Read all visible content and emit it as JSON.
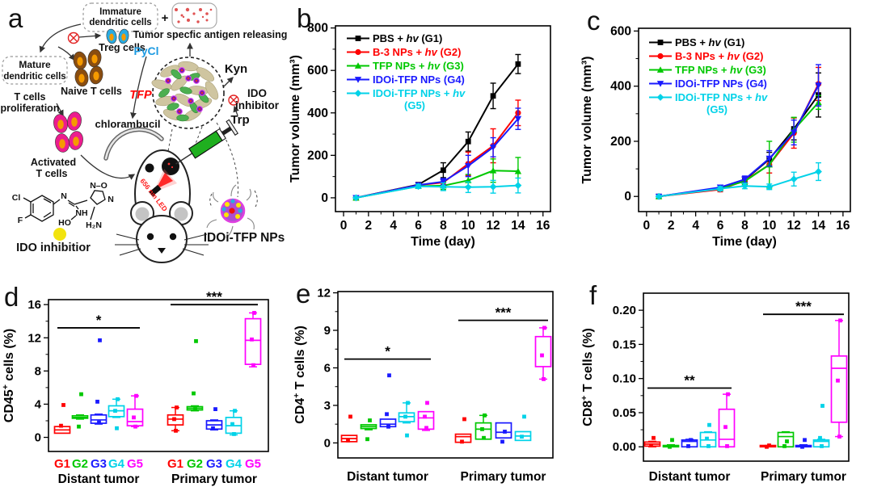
{
  "figure": {
    "panel_letters": [
      "a",
      "b",
      "c",
      "d",
      "e",
      "f"
    ]
  },
  "diagram": {
    "labels": {
      "immature_dc_line1": "Immature",
      "immature_dc_line2": "dendritic cells",
      "plus_sign": "+",
      "antigen_release": "Tumor specfic antigen releasing",
      "treg": "Treg cells",
      "mature_dc_line1": "Mature",
      "mature_dc_line2": "dendritic cells",
      "naive_t": "Naive T cells",
      "proliferation_line1": "T cells",
      "proliferation_line2": "proliferation",
      "activated_line1": "Activated",
      "activated_line2": "T cells",
      "pycl": "PyCl",
      "tfp": "TFP",
      "chlorambucil": "chlorambucil",
      "kyn": "Kyn",
      "ido_right_line1": "IDO",
      "ido_right_line2": "inhibitor",
      "trp": "Trp",
      "led": "656 nm LED",
      "np_label": "IDOi-TFP NPs",
      "ido_bottom": "IDO inhibitior",
      "atom_cl": "Cl",
      "atom_f": "F",
      "atom_n": "N",
      "atom_no": "N–O",
      "atom_n2": "N",
      "atom_nh": "NH",
      "atom_ho": "HO",
      "atom_h2n": "H₂N"
    },
    "colors": {
      "pycl": "#1e9be2",
      "tfp": "#ff0000",
      "led": "#ff1a1a",
      "treg_cell": "#29abe2",
      "naive_cell": "#8a4d10",
      "activated_cell": "#ec1c8f",
      "nucleus": "#f59a00",
      "inhibitor_dot": "#f2e30e"
    }
  },
  "chart_data": [
    {
      "id": "b",
      "type": "line",
      "xlabel": "Time (day)",
      "ylabel": "Tumor volume (mm³)",
      "xlim": [
        -0.65,
        16.6
      ],
      "ylim": [
        -65,
        810
      ],
      "xticks": [
        0,
        2,
        4,
        6,
        8,
        10,
        12,
        14,
        16
      ],
      "xminor": [
        1,
        3,
        5,
        7,
        9,
        11,
        13,
        15
      ],
      "yticks": [
        0,
        200,
        400,
        600,
        800
      ],
      "yminor": [
        100,
        300,
        500,
        700
      ],
      "x": [
        1,
        6,
        8,
        10,
        12,
        14
      ],
      "series": [
        {
          "name_pre": "PBS + ",
          "name_hv": "hv",
          "name_post": " (G1)",
          "color": "#000000",
          "marker": "square",
          "values": [
            0,
            62,
            130,
            265,
            480,
            630
          ],
          "err": [
            4,
            10,
            35,
            45,
            60,
            45
          ]
        },
        {
          "name_pre": "B-3 NPs + ",
          "name_hv": "hv",
          "name_post": " (G2)",
          "color": "#ff0000",
          "marker": "circle",
          "values": [
            0,
            60,
            72,
            160,
            245,
            400
          ],
          "err": [
            4,
            10,
            15,
            55,
            80,
            60
          ]
        },
        {
          "name_pre": "TFP NPs + ",
          "name_hv": "hv",
          "name_post": " (G3)",
          "color": "#00c800",
          "marker": "triangle-up",
          "values": [
            0,
            55,
            57,
            82,
            128,
            125
          ],
          "err": [
            4,
            10,
            18,
            28,
            55,
            65
          ]
        },
        {
          "name_pre": "IDOi-TFP NPs (G4)",
          "name_hv": "",
          "name_post": "",
          "color": "#1a1aff",
          "marker": "triangle-down",
          "values": [
            0,
            60,
            76,
            150,
            238,
            372
          ],
          "err": [
            4,
            10,
            15,
            50,
            45,
            50
          ]
        },
        {
          "name_pre": "IDOi-TFP NPs + ",
          "name_hv": "hv",
          "name_post": "",
          "name_line2": "(G5)",
          "color": "#00d2e8",
          "marker": "diamond",
          "values": [
            0,
            54,
            52,
            50,
            52,
            58
          ],
          "err": [
            4,
            10,
            18,
            25,
            30,
            35
          ]
        }
      ]
    },
    {
      "id": "c",
      "type": "line",
      "xlabel": "Time (day)",
      "ylabel": "Tumor volume (mm³)",
      "xlim": [
        -0.65,
        16.6
      ],
      "ylim": [
        -55,
        610
      ],
      "xticks": [
        0,
        2,
        4,
        6,
        8,
        10,
        12,
        14,
        16
      ],
      "xminor": [
        1,
        3,
        5,
        7,
        9,
        11,
        13,
        15
      ],
      "yticks": [
        0,
        200,
        400,
        600
      ],
      "yminor": [
        100,
        300,
        500
      ],
      "x": [
        1,
        6,
        8,
        10,
        12,
        14
      ],
      "series": [
        {
          "name_pre": "PBS + ",
          "name_hv": "hv",
          "name_post": " (G1)",
          "color": "#000000",
          "marker": "square",
          "values": [
            0,
            30,
            60,
            135,
            245,
            368
          ],
          "err": [
            3,
            8,
            10,
            25,
            40,
            80
          ]
        },
        {
          "name_pre": "B-3 NPs + ",
          "name_hv": "hv",
          "name_post": " (G2)",
          "color": "#ff0000",
          "marker": "circle",
          "values": [
            0,
            25,
            57,
            115,
            230,
            408
          ],
          "err": [
            3,
            8,
            15,
            30,
            55,
            60
          ]
        },
        {
          "name_pre": "TFP NPs + ",
          "name_hv": "hv",
          "name_post": " (G3)",
          "color": "#00c800",
          "marker": "triangle-up",
          "values": [
            0,
            30,
            55,
            115,
            242,
            341
          ],
          "err": [
            3,
            8,
            12,
            85,
            45,
            25
          ]
        },
        {
          "name_pre": "IDOi-TFP NPs (G4)",
          "name_hv": "",
          "name_post": "",
          "color": "#1a1aff",
          "marker": "triangle-down",
          "values": [
            0,
            33,
            62,
            138,
            232,
            403
          ],
          "err": [
            3,
            8,
            12,
            28,
            45,
            75
          ]
        },
        {
          "name_pre": "IDOi-TFP NPs + ",
          "name_hv": "hv",
          "name_post": "",
          "name_line2": "(G5)",
          "color": "#00d2e8",
          "marker": "diamond",
          "values": [
            0,
            28,
            38,
            35,
            63,
            90
          ],
          "err": [
            3,
            8,
            10,
            10,
            25,
            32
          ]
        }
      ]
    },
    {
      "id": "d",
      "type": "box",
      "ylabel_parts": [
        "CD45",
        "+",
        " cells (%)"
      ],
      "ylim": [
        -1.7,
        16.6
      ],
      "yticks": [
        0,
        4,
        8,
        12,
        16
      ],
      "yminor": [
        2,
        6,
        10,
        14
      ],
      "group_labels": [
        "Distant tumor",
        "Primary tumor"
      ],
      "cat_labels": [
        "G1",
        "G2",
        "G3",
        "G4",
        "G5"
      ],
      "cat_colors": [
        "#ff0000",
        "#00c800",
        "#1a1aff",
        "#00d2e8",
        "#ff00ff"
      ],
      "show_cat_labels": true,
      "groups": [
        {
          "name": "Distant tumor",
          "boxes": [
            {
              "lo": 0.5,
              "q1": 0.5,
              "med": 0.9,
              "q3": 1.3,
              "hi": 1.3,
              "pts": [
                3.9,
                1.4
              ]
            },
            {
              "lo": 2.2,
              "q1": 2.3,
              "med": 2.4,
              "q3": 2.6,
              "hi": 2.7,
              "pts": [
                5.2,
                1.3
              ]
            },
            {
              "lo": 1.6,
              "q1": 1.7,
              "med": 2.1,
              "q3": 2.7,
              "hi": 2.8,
              "pts": [
                11.7,
                4.3,
                1.8
              ]
            },
            {
              "lo": 2.4,
              "q1": 2.5,
              "med": 3.2,
              "q3": 3.8,
              "hi": 4.6,
              "pts": [
                4.6,
                3.2,
                1.1
              ]
            },
            {
              "lo": 1.3,
              "q1": 1.4,
              "med": 1.9,
              "q3": 3.4,
              "hi": 5.0,
              "pts": [
                5.0,
                2.4,
                1.3
              ]
            }
          ]
        },
        {
          "name": "Primary tumor",
          "boxes": [
            {
              "lo": 0.8,
              "q1": 1.5,
              "med": 2.2,
              "q3": 2.7,
              "hi": 3.6,
              "pts": [
                3.6,
                2.2,
                0.8
              ]
            },
            {
              "lo": 3.2,
              "q1": 3.3,
              "med": 3.5,
              "q3": 3.7,
              "hi": 3.8,
              "pts": [
                11.6,
                5.3,
                3.4
              ]
            },
            {
              "lo": 0.9,
              "q1": 1.0,
              "med": 1.5,
              "q3": 2.0,
              "hi": 2.1,
              "pts": [
                3.4,
                1.1
              ]
            },
            {
              "lo": 0.3,
              "q1": 0.5,
              "med": 1.4,
              "q3": 2.4,
              "hi": 3.2,
              "pts": [
                3.2,
                1.6,
                0.4
              ]
            },
            {
              "lo": 8.5,
              "q1": 8.8,
              "med": 11.7,
              "q3": 14.3,
              "hi": 15.0,
              "pts": [
                15.0,
                11.8,
                8.7
              ]
            }
          ]
        }
      ],
      "sig": [
        {
          "group": 0,
          "y": 13.2,
          "label": "*"
        },
        {
          "group": 1,
          "y": 16.0,
          "label": "***"
        }
      ]
    },
    {
      "id": "e",
      "type": "box",
      "ylabel_parts": [
        "CD4",
        "+",
        " T cells (%)"
      ],
      "ylim": [
        -1.2,
        12.1
      ],
      "yticks": [
        0,
        3,
        6,
        9,
        12
      ],
      "yminor": [
        1.5,
        4.5,
        7.5,
        10.5
      ],
      "group_labels": [
        "Distant tumor",
        "Primary tumor"
      ],
      "cat_labels": [
        "G1",
        "G2",
        "G3",
        "G4",
        "G5"
      ],
      "cat_colors": [
        "#ff0000",
        "#00c800",
        "#1a1aff",
        "#00d2e8",
        "#ff00ff"
      ],
      "show_cat_labels": false,
      "groups": [
        {
          "name": "Distant tumor",
          "boxes": [
            {
              "lo": 0.05,
              "q1": 0.1,
              "med": 0.35,
              "q3": 0.6,
              "hi": 0.65,
              "pts": [
                2.1,
                0.2
              ]
            },
            {
              "lo": 1.05,
              "q1": 1.15,
              "med": 1.3,
              "q3": 1.45,
              "hi": 1.5,
              "pts": [
                1.8,
                0.3
              ]
            },
            {
              "lo": 1.25,
              "q1": 1.3,
              "med": 1.5,
              "q3": 1.9,
              "hi": 1.95,
              "pts": [
                5.4,
                2.3,
                1.3
              ]
            },
            {
              "lo": 1.6,
              "q1": 1.7,
              "med": 2.1,
              "q3": 2.4,
              "hi": 3.2,
              "pts": [
                3.2,
                2.1,
                0.6
              ]
            },
            {
              "lo": 1.0,
              "q1": 1.1,
              "med": 2.0,
              "q3": 2.5,
              "hi": 2.55,
              "pts": [
                3.2,
                2.1,
                1.2
              ]
            }
          ]
        },
        {
          "name": "Primary tumor",
          "boxes": [
            {
              "lo": 0.0,
              "q1": 0.05,
              "med": 0.5,
              "q3": 0.7,
              "hi": 0.75,
              "pts": [
                1.9,
                0.1
              ]
            },
            {
              "lo": 0.25,
              "q1": 0.3,
              "med": 1.1,
              "q3": 1.6,
              "hi": 2.2,
              "pts": [
                2.2,
                1.1,
                0.4
              ]
            },
            {
              "lo": 0.35,
              "q1": 0.4,
              "med": 0.85,
              "q3": 1.6,
              "hi": 1.65,
              "pts": [
                0.9,
                0.1
              ]
            },
            {
              "lo": 0.15,
              "q1": 0.2,
              "med": 0.55,
              "q3": 0.9,
              "hi": 0.95,
              "pts": [
                2.1,
                0.5
              ]
            },
            {
              "lo": 5.1,
              "q1": 6.1,
              "med": null,
              "q3": 8.5,
              "hi": 9.2,
              "pts": [
                9.2,
                7.0,
                5.1
              ]
            }
          ]
        }
      ],
      "sig": [
        {
          "group": 0,
          "y": 6.7,
          "label": "*"
        },
        {
          "group": 1,
          "y": 9.8,
          "label": "***"
        }
      ]
    },
    {
      "id": "f",
      "type": "box",
      "ylabel_parts": [
        "CD8",
        "+",
        " T cells (%)"
      ],
      "ylim": [
        -0.021,
        0.225
      ],
      "yticks": [
        0,
        0.05,
        0.1,
        0.15,
        0.2
      ],
      "yticklabels": [
        "0.00",
        "0.05",
        "0.10",
        "0.15",
        "0.20"
      ],
      "yminor": [
        0.025,
        0.075,
        0.125,
        0.175
      ],
      "group_labels": [
        "Distant tumor",
        "Primary tumor"
      ],
      "cat_labels": [
        "G1",
        "G2",
        "G3",
        "G4",
        "G5"
      ],
      "cat_colors": [
        "#ff0000",
        "#00c800",
        "#1a1aff",
        "#00d2e8",
        "#ff00ff"
      ],
      "show_cat_labels": false,
      "groups": [
        {
          "name": "Distant tumor",
          "boxes": [
            {
              "lo": 0.0,
              "q1": 0.001,
              "med": 0.004,
              "q3": 0.007,
              "hi": 0.008,
              "pts": [
                0.013,
                0.002
              ]
            },
            {
              "lo": 0.0,
              "q1": 0.0,
              "med": 0.001,
              "q3": 0.002,
              "hi": 0.003,
              "pts": [
                0.01,
                0.0
              ]
            },
            {
              "lo": 0.0,
              "q1": 0.0,
              "med": 0.008,
              "q3": 0.01,
              "hi": 0.011,
              "pts": [
                0.01,
                0.001
              ]
            },
            {
              "lo": 0.0,
              "q1": 0.0,
              "med": 0.01,
              "q3": 0.021,
              "hi": 0.022,
              "pts": [
                0.032,
                0.012,
                0.001
              ]
            },
            {
              "lo": 0.0,
              "q1": 0.0,
              "med": 0.011,
              "q3": 0.055,
              "hi": 0.077,
              "pts": [
                0.077,
                0.029,
                0.001
              ]
            }
          ]
        },
        {
          "name": "Primary tumor",
          "boxes": [
            {
              "lo": 0.0,
              "q1": 0.0,
              "med": 0.001,
              "q3": 0.002,
              "hi": 0.002,
              "pts": [
                0.002,
                0.0
              ]
            },
            {
              "lo": 0.0,
              "q1": 0.0,
              "med": 0.015,
              "q3": 0.021,
              "hi": 0.022,
              "pts": [
                0.008,
                0.001
              ]
            },
            {
              "lo": 0.0,
              "q1": 0.0,
              "med": 0.001,
              "q3": 0.002,
              "hi": 0.003,
              "pts": [
                0.01,
                0.0
              ]
            },
            {
              "lo": 0.0,
              "q1": 0.0,
              "med": 0.008,
              "q3": 0.01,
              "hi": 0.011,
              "pts": [
                0.06,
                0.013,
                0.001
              ]
            },
            {
              "lo": 0.015,
              "q1": 0.036,
              "med": 0.115,
              "q3": 0.133,
              "hi": 0.185,
              "pts": [
                0.185,
                0.097,
                0.015
              ]
            }
          ]
        }
      ],
      "sig": [
        {
          "group": 0,
          "y": 0.086,
          "label": "**"
        },
        {
          "group": 1,
          "y": 0.194,
          "label": "***"
        }
      ]
    }
  ]
}
